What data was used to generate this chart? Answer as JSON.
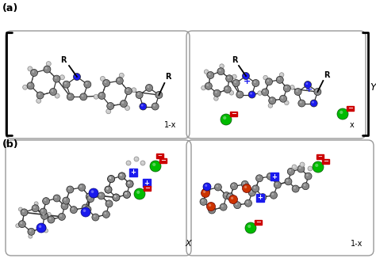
{
  "bg_color": "#ffffff",
  "label_a": "(a)",
  "label_b": "(b)",
  "label_1mx": "1-x",
  "label_x": "x",
  "label_X": "X",
  "label_1mx_b": "1-x",
  "label_Y": "Y",
  "gray_atom": "#888888",
  "gray_dark": "#555555",
  "gray_light": "#aaaaaa",
  "blue_atom": "#1a1aee",
  "green_atom": "#00bb00",
  "red_sq": "#cc0000",
  "white_atom": "#cccccc",
  "bond_color": "#333333",
  "figsize": [
    4.74,
    3.26
  ],
  "dpi": 100
}
